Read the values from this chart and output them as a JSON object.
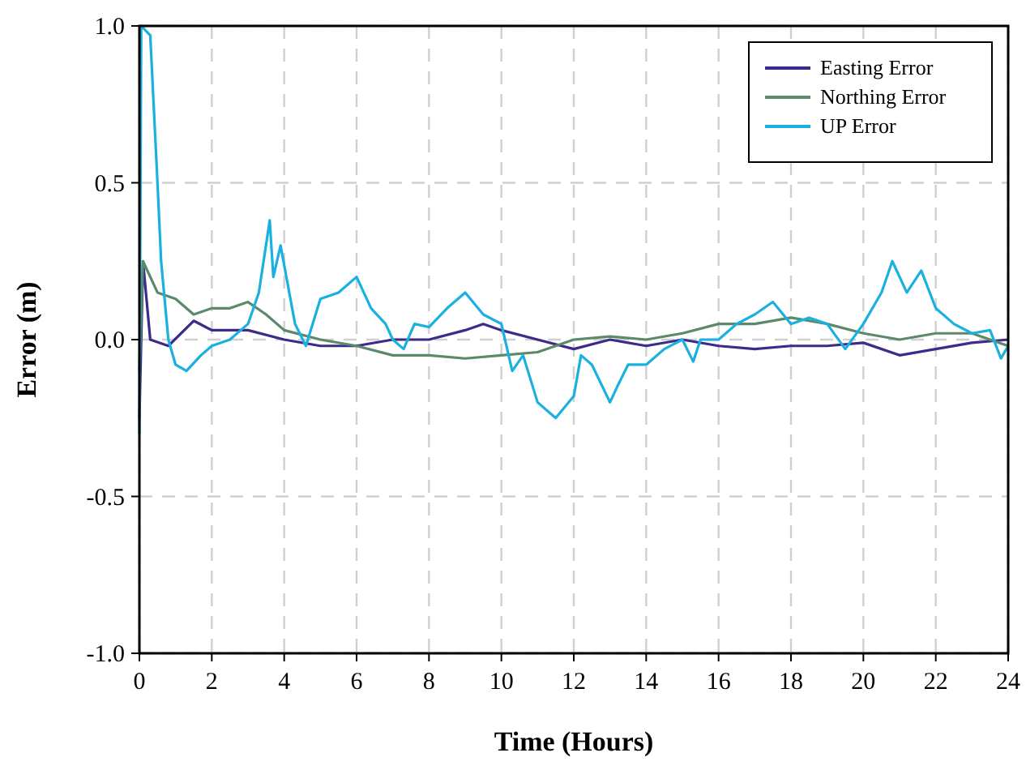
{
  "chart_data": {
    "type": "line",
    "xlabel": "Time (Hours)",
    "ylabel": "Error (m)",
    "xlim": [
      0,
      24
    ],
    "xticks": [
      0,
      2,
      4,
      6,
      8,
      10,
      12,
      14,
      16,
      18,
      20,
      22,
      24
    ],
    "ylim": [
      -1,
      1
    ],
    "yticks": [
      {
        "value": -1,
        "label": "-1.0"
      },
      {
        "value": -0.5,
        "label": "-0.5"
      },
      {
        "value": 0,
        "label": "0.0"
      },
      {
        "value": 0.5,
        "label": "0.5"
      },
      {
        "value": 1,
        "label": "1.0"
      }
    ],
    "grid": true,
    "legend": "top right",
    "line_style": "solid",
    "series": [
      {
        "name": "Easting Error",
        "color": "#3d2a8a",
        "x": [
          0,
          0.1,
          0.3,
          0.8,
          1.5,
          2,
          3,
          4,
          5,
          6,
          7,
          8,
          9,
          9.5,
          10,
          11,
          12,
          13,
          14,
          15,
          16,
          17,
          18,
          19,
          20,
          21,
          22,
          23,
          24
        ],
        "values": [
          -0.25,
          0.25,
          0.0,
          -0.02,
          0.06,
          0.03,
          0.03,
          0.0,
          -0.02,
          -0.02,
          0.0,
          0.0,
          0.03,
          0.05,
          0.03,
          0.0,
          -0.03,
          0.0,
          -0.02,
          0.0,
          -0.02,
          -0.03,
          -0.02,
          -0.02,
          -0.01,
          -0.05,
          -0.03,
          -0.01,
          0.0
        ]
      },
      {
        "name": "Northing Error",
        "color": "#5a8a6a",
        "x": [
          0,
          0.1,
          0.5,
          1,
          1.5,
          2,
          2.5,
          3,
          3.5,
          4,
          5,
          6,
          7,
          8,
          9,
          10,
          11,
          12,
          13,
          14,
          15,
          16,
          17,
          18,
          19,
          20,
          21,
          22,
          23,
          24
        ],
        "values": [
          -0.1,
          0.25,
          0.15,
          0.13,
          0.08,
          0.1,
          0.1,
          0.12,
          0.08,
          0.03,
          0.0,
          -0.02,
          -0.05,
          -0.05,
          -0.06,
          -0.05,
          -0.04,
          0.0,
          0.01,
          0.0,
          0.02,
          0.05,
          0.05,
          0.07,
          0.05,
          0.02,
          0.0,
          0.02,
          0.02,
          -0.02
        ]
      },
      {
        "name": "UP Error",
        "color": "#1ab0e0",
        "x": [
          0,
          0.05,
          0.3,
          0.5,
          0.6,
          0.8,
          1,
          1.3,
          1.7,
          2,
          2.5,
          3,
          3.3,
          3.6,
          3.7,
          3.9,
          4.3,
          4.6,
          5,
          5.5,
          6,
          6.4,
          6.8,
          7,
          7.3,
          7.6,
          8,
          8.5,
          9,
          9.5,
          10,
          10.3,
          10.6,
          11,
          11.5,
          12,
          12.2,
          12.5,
          13,
          13.2,
          13.5,
          14,
          14.5,
          15,
          15.3,
          15.5,
          16,
          16.5,
          17,
          17.5,
          18,
          18.5,
          19,
          19.5,
          20,
          20.5,
          20.8,
          21.2,
          21.6,
          22,
          22.5,
          23,
          23.5,
          23.8,
          24
        ],
        "values": [
          -0.3,
          1.0,
          0.97,
          0.5,
          0.25,
          0.0,
          -0.08,
          -0.1,
          -0.05,
          -0.02,
          0.0,
          0.05,
          0.15,
          0.38,
          0.2,
          0.3,
          0.05,
          -0.02,
          0.13,
          0.15,
          0.2,
          0.1,
          0.05,
          0.0,
          -0.03,
          0.05,
          0.04,
          0.1,
          0.15,
          0.08,
          0.05,
          -0.1,
          -0.05,
          -0.2,
          -0.25,
          -0.18,
          -0.05,
          -0.08,
          -0.2,
          -0.15,
          -0.08,
          -0.08,
          -0.03,
          0.0,
          -0.07,
          0.0,
          0.0,
          0.05,
          0.08,
          0.12,
          0.05,
          0.07,
          0.05,
          -0.03,
          0.05,
          0.15,
          0.25,
          0.15,
          0.22,
          0.1,
          0.05,
          0.02,
          0.03,
          -0.06,
          -0.02
        ]
      }
    ]
  }
}
